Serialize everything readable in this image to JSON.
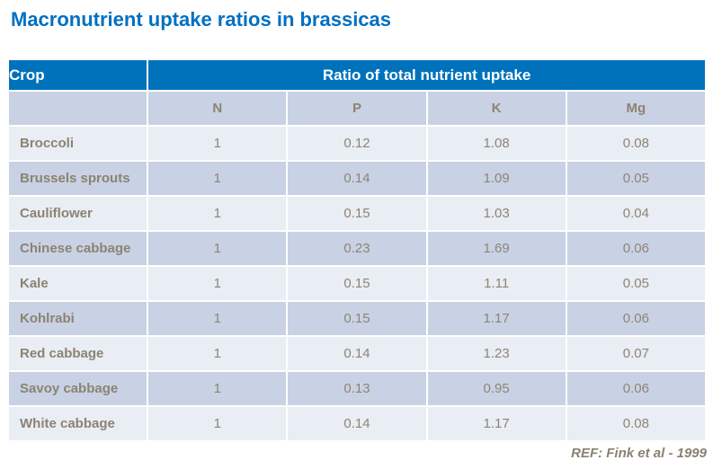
{
  "page": {
    "title": "Macronutrient uptake ratios in brassicas",
    "reference": "REF: Fink et al - 1999"
  },
  "colors": {
    "title_blue": "#0070C0",
    "header_bg_blue": "#0072BC",
    "header_text": "#FFFFFF",
    "row_light": "#E9EDF4",
    "row_dark": "#C8D2E4",
    "body_text_brown": "#8C8372",
    "gridline": "#FFFFFF"
  },
  "table": {
    "header": {
      "crop_label": "Crop",
      "group_label": "Ratio of total nutrient uptake"
    },
    "nutrients": [
      "N",
      "P",
      "K",
      "Mg"
    ],
    "rows": [
      {
        "crop": "Broccoli",
        "values": [
          "1",
          "0.12",
          "1.08",
          "0.08"
        ]
      },
      {
        "crop": "Brussels sprouts",
        "values": [
          "1",
          "0.14",
          "1.09",
          "0.05"
        ]
      },
      {
        "crop": "Cauliflower",
        "values": [
          "1",
          "0.15",
          "1.03",
          "0.04"
        ]
      },
      {
        "crop": "Chinese cabbage",
        "values": [
          "1",
          "0.23",
          "1.69",
          "0.06"
        ]
      },
      {
        "crop": "Kale",
        "values": [
          "1",
          "0.15",
          "1.11",
          "0.05"
        ]
      },
      {
        "crop": "Kohlrabi",
        "values": [
          "1",
          "0.15",
          "1.17",
          "0.06"
        ]
      },
      {
        "crop": "Red cabbage",
        "values": [
          "1",
          "0.14",
          "1.23",
          "0.07"
        ]
      },
      {
        "crop": "Savoy cabbage",
        "values": [
          "1",
          "0.13",
          "0.95",
          "0.06"
        ]
      },
      {
        "crop": "White cabbage",
        "values": [
          "1",
          "0.14",
          "1.17",
          "0.08"
        ]
      }
    ]
  },
  "chart_data": {
    "type": "table",
    "title": "Macronutrient uptake ratios in brassicas",
    "columns": [
      "Crop",
      "N",
      "P",
      "K",
      "Mg"
    ],
    "rows": [
      [
        "Broccoli",
        1,
        0.12,
        1.08,
        0.08
      ],
      [
        "Brussels sprouts",
        1,
        0.14,
        1.09,
        0.05
      ],
      [
        "Cauliflower",
        1,
        0.15,
        1.03,
        0.04
      ],
      [
        "Chinese cabbage",
        1,
        0.23,
        1.69,
        0.06
      ],
      [
        "Kale",
        1,
        0.15,
        1.11,
        0.05
      ],
      [
        "Kohlrabi",
        1,
        0.15,
        1.17,
        0.06
      ],
      [
        "Red cabbage",
        1,
        0.14,
        1.23,
        0.07
      ],
      [
        "Savoy cabbage",
        1,
        0.13,
        0.95,
        0.06
      ],
      [
        "White cabbage",
        1,
        0.14,
        1.17,
        0.08
      ]
    ],
    "source": "REF: Fink et al - 1999"
  }
}
